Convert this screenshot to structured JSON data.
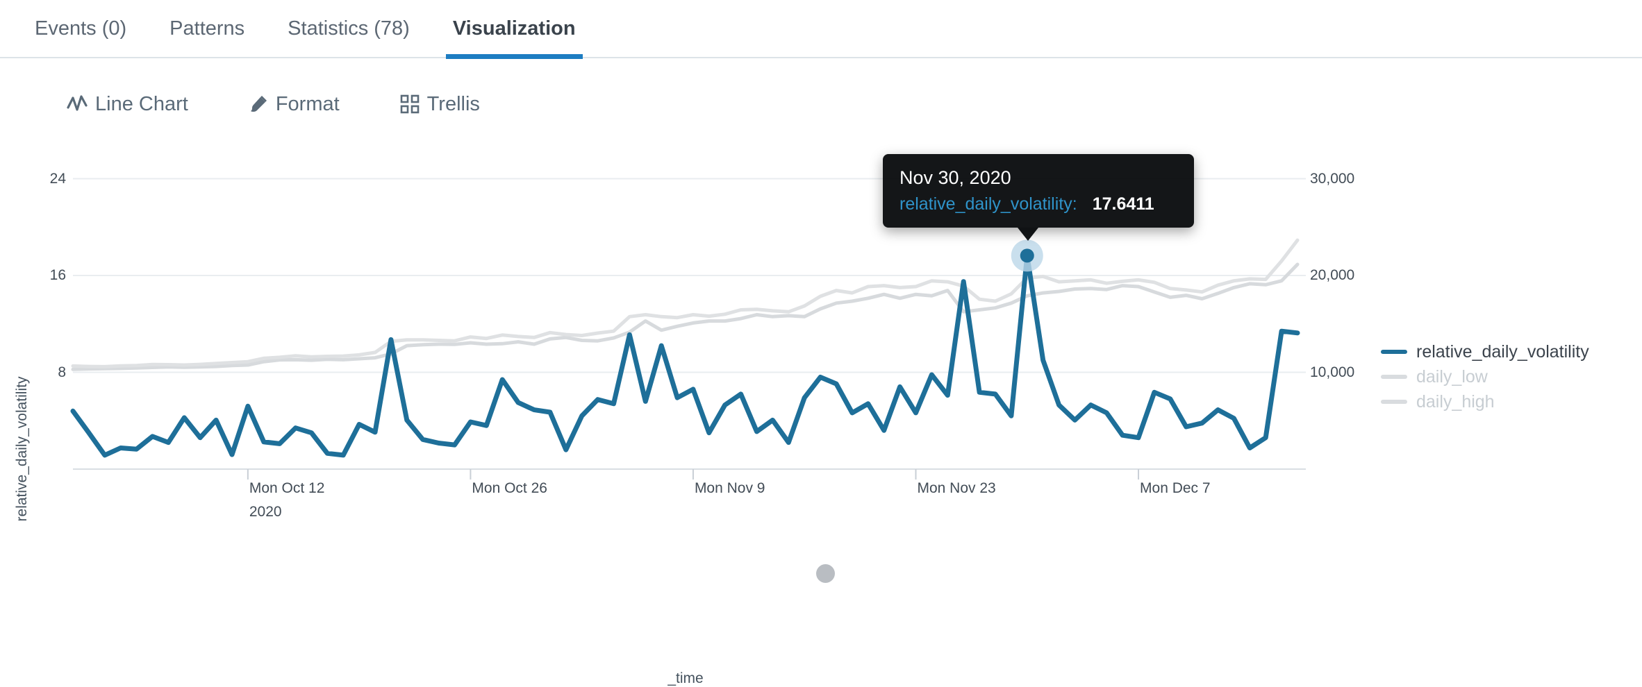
{
  "tabs": [
    {
      "label": "Events (0)",
      "active": false
    },
    {
      "label": "Patterns",
      "active": false
    },
    {
      "label": "Statistics (78)",
      "active": false
    },
    {
      "label": "Visualization",
      "active": true
    }
  ],
  "toolbar": {
    "chart_type_label": "Line Chart",
    "format_label": "Format",
    "trellis_label": "Trellis",
    "icons": [
      "line-chart-pulse-icon",
      "paintbrush-icon",
      "trellis-grid-icon"
    ]
  },
  "colors": {
    "accent_blue": "#1d7dc2",
    "series_blue": "#1e6f99",
    "series_gray_low": "#d7dadd",
    "series_gray_high": "#dfe1e3",
    "gridline": "#e9edf0",
    "axis_line": "#d9dee3",
    "tooltip_field_blue": "#2f93c9",
    "dim_legend_text": "#c7cdd2"
  },
  "tooltip": {
    "date": "Nov 30, 2020",
    "field": "relative_daily_volatility:",
    "value": "17.6411"
  },
  "legend": {
    "items": [
      {
        "label": "relative_daily_volatility",
        "color": "#1e6f99",
        "dimmed": false
      },
      {
        "label": "daily_low",
        "color": "#d9dcdf",
        "dimmed": true
      },
      {
        "label": "daily_high",
        "color": "#d9dcdf",
        "dimmed": true
      }
    ]
  },
  "axes": {
    "y_left_title": "relative_daily_volatility",
    "x_title": "_time",
    "y_left_ticks": [
      "24",
      "16",
      "8"
    ],
    "y_right_ticks": [
      "30,000",
      "20,000",
      "10,000"
    ],
    "x_ticks": [
      {
        "label": "Mon Oct 12",
        "sub": "2020",
        "day": 11
      },
      {
        "label": "Mon Oct 26",
        "sub": "",
        "day": 25
      },
      {
        "label": "Mon Nov 9",
        "sub": "",
        "day": 39
      },
      {
        "label": "Mon Nov 23",
        "sub": "",
        "day": 53
      },
      {
        "label": "Mon Dec 7",
        "sub": "",
        "day": 67
      }
    ]
  },
  "chart_data": {
    "type": "line",
    "xlabel": "_time",
    "ylabel_left": "relative_daily_volatility",
    "x_start_date": "2020-10-01",
    "x_end_date": "2020-12-17",
    "x_unit": "1 day",
    "n_points": 78,
    "y_left_range": [
      0,
      24
    ],
    "y_right_range": [
      0,
      30000
    ],
    "y_left_gridlines": [
      24,
      16,
      8
    ],
    "y_right_gridlines": [
      30000,
      20000,
      10000
    ],
    "legend_position": "right",
    "highlight": {
      "series": "relative_daily_volatility",
      "index": 60,
      "date": "Nov 30, 2020",
      "value": 17.6411
    },
    "series": [
      {
        "name": "relative_daily_volatility",
        "axis": "left",
        "color": "#1e6f99",
        "width": 7,
        "values": [
          4.8,
          3.0,
          1.15,
          1.75,
          1.65,
          2.7,
          2.2,
          4.25,
          2.6,
          4.05,
          1.2,
          5.2,
          2.25,
          2.1,
          3.4,
          3.0,
          1.3,
          1.15,
          3.7,
          3.05,
          10.7,
          4.05,
          2.45,
          2.15,
          2.0,
          3.9,
          3.6,
          7.4,
          5.5,
          4.9,
          4.7,
          1.6,
          4.4,
          5.75,
          5.4,
          11.1,
          5.6,
          10.2,
          5.9,
          6.6,
          3.0,
          5.3,
          6.2,
          3.1,
          4.05,
          2.2,
          5.9,
          7.6,
          7.05,
          4.65,
          5.4,
          3.2,
          6.8,
          4.65,
          7.8,
          6.1,
          15.5,
          6.35,
          6.2,
          4.4,
          17.6411,
          9.0,
          5.3,
          4.05,
          5.3,
          4.65,
          2.8,
          2.6,
          6.35,
          5.8,
          3.5,
          3.8,
          4.9,
          4.2,
          1.75,
          2.6,
          11.4,
          11.25
        ]
      },
      {
        "name": "daily_low",
        "axis": "right",
        "color": "#d7dadd",
        "width": 5,
        "values": [
          10300,
          10350,
          10380,
          10400,
          10450,
          10500,
          10550,
          10520,
          10560,
          10600,
          10700,
          10750,
          11100,
          11280,
          11300,
          11250,
          11350,
          11300,
          11400,
          11500,
          11900,
          12750,
          12850,
          12900,
          12880,
          13050,
          12900,
          12950,
          13150,
          12900,
          13450,
          13600,
          13300,
          13250,
          13550,
          14150,
          15300,
          14350,
          14750,
          15100,
          15300,
          15300,
          15550,
          15950,
          15750,
          15850,
          15750,
          16550,
          17150,
          17350,
          17650,
          18050,
          17650,
          18050,
          17900,
          18450,
          16250,
          16450,
          16650,
          17150,
          17900,
          18200,
          18350,
          18600,
          18650,
          18550,
          18950,
          18850,
          18300,
          17750,
          17950,
          17600,
          18150,
          18750,
          19150,
          19050,
          19450,
          21150
        ]
      },
      {
        "name": "daily_high",
        "axis": "right",
        "color": "#dfe1e3",
        "width": 5,
        "values": [
          10650,
          10600,
          10580,
          10670,
          10700,
          10800,
          10790,
          10750,
          10820,
          10920,
          11000,
          11100,
          11450,
          11550,
          11700,
          11600,
          11650,
          11680,
          11800,
          12050,
          13200,
          13350,
          13350,
          13300,
          13250,
          13650,
          13500,
          13850,
          13700,
          13600,
          14100,
          13900,
          13800,
          14050,
          14250,
          15750,
          15950,
          15750,
          15650,
          15950,
          15800,
          16000,
          16450,
          16500,
          16350,
          16250,
          16850,
          17850,
          18450,
          18200,
          18850,
          18950,
          18750,
          18850,
          19450,
          19350,
          18900,
          17550,
          17350,
          18100,
          19750,
          19900,
          19350,
          19450,
          19550,
          19200,
          19400,
          19550,
          19300,
          18650,
          18500,
          18300,
          19000,
          19450,
          19650,
          19600,
          21500,
          23650
        ]
      }
    ]
  }
}
